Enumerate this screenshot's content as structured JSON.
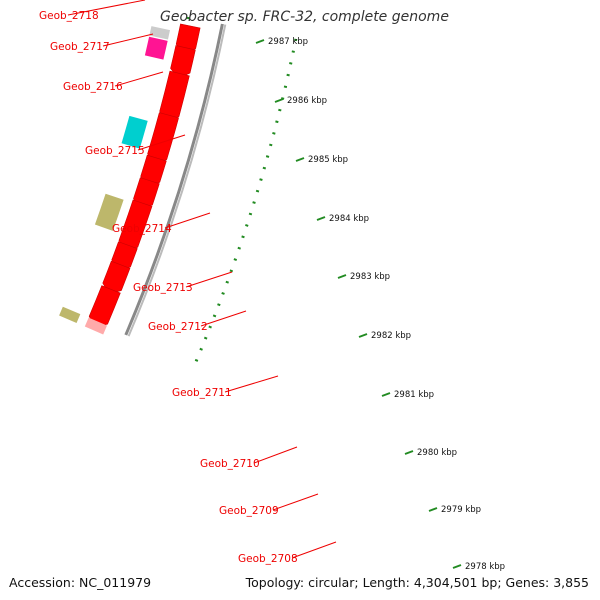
{
  "title": "Geobacter sp. FRC-32, complete genome",
  "accession": "Accession: NC_011979",
  "stats": "Topology: circular; Length: 4,304,501 bp; Genes: 3,855",
  "genes": [
    {
      "name": "Geob_2718",
      "color": "#ff0000"
    },
    {
      "name": "Geob_2717",
      "color": "#ff0000"
    },
    {
      "name": "Geob_2716",
      "color": "#ff0000"
    },
    {
      "name": "Geob_2715",
      "color": "#ff0000"
    },
    {
      "name": "Geob_2714",
      "color": "#ff0000"
    },
    {
      "name": "Geob_2713",
      "color": "#ff0000"
    },
    {
      "name": "Geob_2712",
      "color": "#ff0000"
    },
    {
      "name": "Geob_2711",
      "color": "#ff0000"
    },
    {
      "name": "Geob_2710",
      "color": "#ff0000"
    },
    {
      "name": "Geob_2709",
      "color": "#ff0000"
    },
    {
      "name": "Geob_2708",
      "color": "#ff0000"
    }
  ],
  "cogs": [
    {
      "color": "#cccccc"
    },
    {
      "color": "#ff1493"
    },
    {
      "color": "#00cfcf"
    },
    {
      "color": "#bdb76b"
    },
    {
      "color": "#bdb76b"
    }
  ],
  "ticks": [
    "2987 kbp",
    "2986 kbp",
    "2985 kbp",
    "2984 kbp",
    "2983 kbp",
    "2982 kbp",
    "2981 kbp",
    "2980 kbp",
    "2979 kbp",
    "2978 kbp"
  ],
  "colors": {
    "label": "#ee0000",
    "backbone": "#888888",
    "tick": "#228b22",
    "tick_label": "#111111"
  }
}
